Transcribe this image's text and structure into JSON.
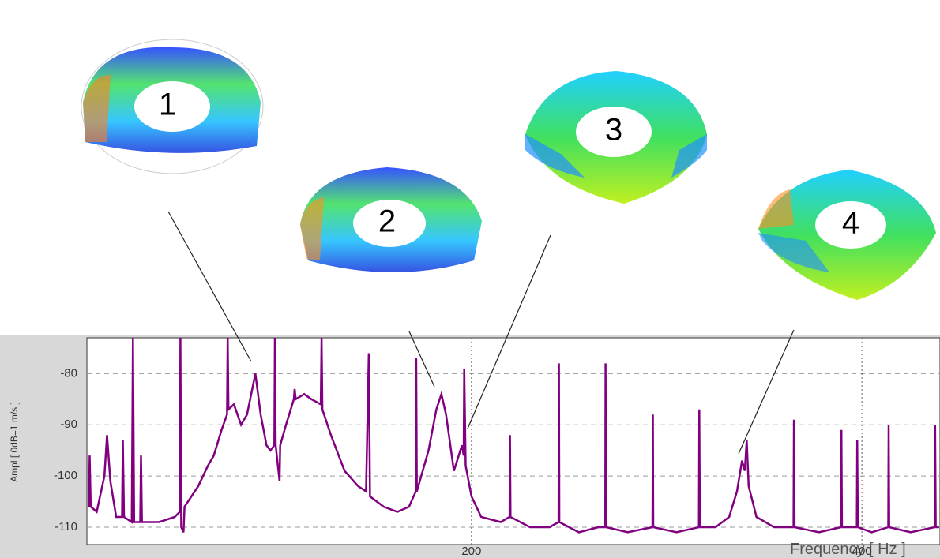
{
  "chart_data": {
    "type": "line",
    "x_label": "Frequency [ Hz ]",
    "y_label": "Ampl [ 0dB=1 m/s ]",
    "annotations": [
      "1",
      "2",
      "3",
      "4"
    ],
    "color": "#800080",
    "grid": true,
    "xlim": [
      3,
      440
    ],
    "ylim": [
      -113.4,
      -73
    ],
    "xticks": [
      200,
      400
    ],
    "yticks": [
      -80,
      -90,
      -100,
      -110
    ],
    "x": [
      4,
      4.4,
      5,
      8,
      12,
      13.3,
      15,
      18,
      21,
      21.4,
      22,
      26,
      26.6,
      27.2,
      30.3,
      30.7,
      31.2,
      40,
      48,
      50.6,
      50.9,
      51.3,
      52.5,
      53,
      60,
      65,
      68,
      72,
      74.8,
      75.1,
      75.5,
      78.3,
      82,
      85,
      89.3,
      92,
      95,
      97,
      99,
      99.3,
      99.7,
      101.7,
      102,
      105,
      109,
      109.4,
      110,
      114.3,
      118,
      122.8,
      123.2,
      123.6,
      128,
      135,
      142,
      146,
      147.4,
      148,
      155,
      162,
      168,
      171.5,
      171.7,
      172,
      178,
      182,
      184.6,
      187,
      191,
      195.1,
      196,
      196.3,
      197,
      200,
      205,
      215,
      219.5,
      219.7,
      220,
      230,
      240,
      244.6,
      244.8,
      245,
      255,
      265,
      268.5,
      268.7,
      269,
      280,
      292.7,
      292.9,
      293.1,
      305,
      316.5,
      316.7,
      317,
      325,
      332,
      336,
      338.6,
      340,
      341,
      342,
      346,
      355,
      365,
      365.2,
      365.5,
      378,
      389.3,
      389.5,
      389.8,
      397.4,
      397.6,
      397.9,
      405,
      413.5,
      413.7,
      414,
      425,
      437.3,
      437.5,
      437.8,
      439.5
    ],
    "values": [
      -106,
      -96,
      -106,
      -107,
      -100,
      -92,
      -101,
      -108,
      -108,
      -93,
      -108,
      -109,
      -73,
      -109,
      -109,
      -96,
      -109,
      -109,
      -108,
      -107,
      -73,
      -110,
      -111,
      -106,
      -102,
      -98,
      -96,
      -91,
      -88,
      -73,
      -87,
      -86,
      -90,
      -88,
      -80,
      -88,
      -94,
      -95,
      -94,
      -73,
      -94,
      -101,
      -94,
      -90,
      -85,
      -83,
      -85,
      -84,
      -85,
      -86,
      -73,
      -87,
      -92,
      -99,
      -102,
      -103,
      -76,
      -104,
      -106,
      -107,
      -106,
      -103,
      -77,
      -103,
      -95,
      -87,
      -84,
      -88,
      -99,
      -94,
      -96,
      -79,
      -98,
      -104,
      -108,
      -109,
      -108,
      -92,
      -108,
      -110,
      -110,
      -109,
      -78,
      -109,
      -111,
      -110,
      -110,
      -78,
      -110,
      -111,
      -110,
      -88,
      -110,
      -111,
      -110,
      -87,
      -110,
      -110,
      -108,
      -103,
      -97,
      -99,
      -93,
      -102,
      -108,
      -110,
      -110,
      -89,
      -110,
      -111,
      -110,
      -91,
      -110,
      -110,
      -93,
      -110,
      -111,
      -110,
      -90,
      -110,
      -111,
      -110,
      -90,
      -110,
      -110
    ]
  }
}
